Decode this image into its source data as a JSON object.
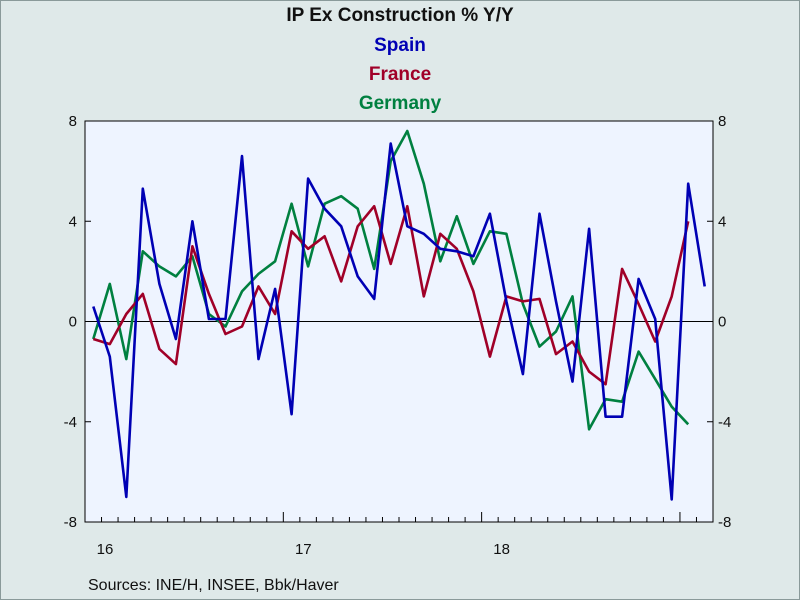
{
  "chart_data": {
    "type": "line",
    "title": "IP Ex Construction % Y/Y",
    "source": "Sources:  INE/H, INSEE, Bbk/Haver",
    "xlabel": "",
    "ylabel": "",
    "ylim": [
      -8,
      8
    ],
    "yticks": [
      -8,
      -4,
      0,
      4,
      8
    ],
    "ytick_labels": [
      "-8",
      "-4",
      "0",
      "4",
      "8"
    ],
    "xtick_labels": [
      "16",
      "17",
      "18"
    ],
    "x_start": "2016-01",
    "x_frequency": "monthly",
    "grid": false,
    "zero_line": true,
    "legend_position": "top-center",
    "series": [
      {
        "name": "Spain",
        "color": "#0000b4",
        "values": [
          0.6,
          -1.4,
          -7.0,
          5.3,
          1.5,
          -0.7,
          4.0,
          0.1,
          0.1,
          6.6,
          -1.5,
          1.3,
          -3.7,
          5.7,
          4.5,
          3.8,
          1.8,
          0.9,
          7.1,
          3.8,
          3.5,
          2.9,
          2.8,
          2.6,
          4.3,
          0.8,
          -2.1,
          4.3,
          0.8,
          -2.4,
          3.7,
          -3.8,
          -3.8,
          1.7,
          0.1,
          -7.1,
          5.5,
          1.4
        ]
      },
      {
        "name": "France",
        "color": "#a00028",
        "values": [
          -0.7,
          -0.9,
          0.3,
          1.1,
          -1.1,
          -1.7,
          3.0,
          1.1,
          -0.5,
          -0.2,
          1.4,
          0.3,
          3.6,
          2.9,
          3.4,
          1.6,
          3.8,
          4.6,
          2.3,
          4.6,
          1.0,
          3.5,
          2.9,
          1.2,
          -1.4,
          1.0,
          0.8,
          0.9,
          -1.3,
          -0.8,
          -2.0,
          -2.5,
          2.1,
          0.7,
          -0.8,
          1.0,
          4.0
        ]
      },
      {
        "name": "Germany",
        "color": "#008040",
        "values": [
          -0.7,
          1.5,
          -1.5,
          2.8,
          2.2,
          1.8,
          2.6,
          0.3,
          -0.2,
          1.2,
          1.9,
          2.4,
          4.7,
          2.2,
          4.7,
          5.0,
          4.5,
          2.1,
          6.4,
          7.6,
          5.5,
          2.4,
          4.2,
          2.3,
          3.6,
          3.5,
          0.7,
          -1.0,
          -0.4,
          1.0,
          -4.3,
          -3.1,
          -3.2,
          -1.2,
          -2.3,
          -3.4,
          -4.1
        ]
      }
    ]
  }
}
